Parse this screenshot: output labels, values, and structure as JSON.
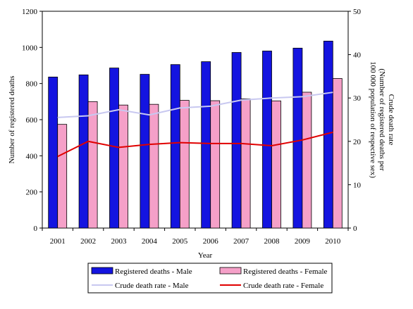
{
  "chart_data": {
    "type": "bar",
    "categories": [
      "2001",
      "2002",
      "2003",
      "2004",
      "2005",
      "2006",
      "2007",
      "2008",
      "2009",
      "2010"
    ],
    "series": [
      {
        "name": "Registered deaths - Male",
        "kind": "bar",
        "axis": "left",
        "color": "#1414e0",
        "values": [
          836,
          848,
          886,
          851,
          905,
          921,
          972,
          980,
          996,
          1035
        ]
      },
      {
        "name": "Registered deaths - Female",
        "kind": "bar",
        "axis": "left",
        "color": "#f5a0c8",
        "values": [
          574,
          700,
          681,
          685,
          707,
          705,
          715,
          704,
          752,
          828
        ]
      },
      {
        "name": "Crude death rate - Male",
        "kind": "line",
        "axis": "right",
        "color": "#c8c8f0",
        "values": [
          25.5,
          25.9,
          27.3,
          26.1,
          27.7,
          28.1,
          29.5,
          30.0,
          30.3,
          31.3
        ]
      },
      {
        "name": "Crude death rate - Female",
        "kind": "line",
        "axis": "right",
        "color": "#e00000",
        "values": [
          16.5,
          20.0,
          18.6,
          19.3,
          19.7,
          19.5,
          19.5,
          19.0,
          20.3,
          22.1
        ]
      }
    ],
    "xlabel": "Year",
    "ylabel": "Number of registered deaths",
    "ylabel_right": [
      "Crude death rate",
      "(Number of registered deaths per",
      "100 000 population of respective sex)"
    ],
    "ylim": [
      0,
      1200
    ],
    "y_ticks": [
      0,
      200,
      400,
      600,
      800,
      1000,
      1200
    ],
    "ylim_right": [
      0,
      50
    ],
    "y2_ticks": [
      0,
      10,
      20,
      30,
      40,
      50
    ],
    "grid": false,
    "legend_position": "bottom"
  }
}
